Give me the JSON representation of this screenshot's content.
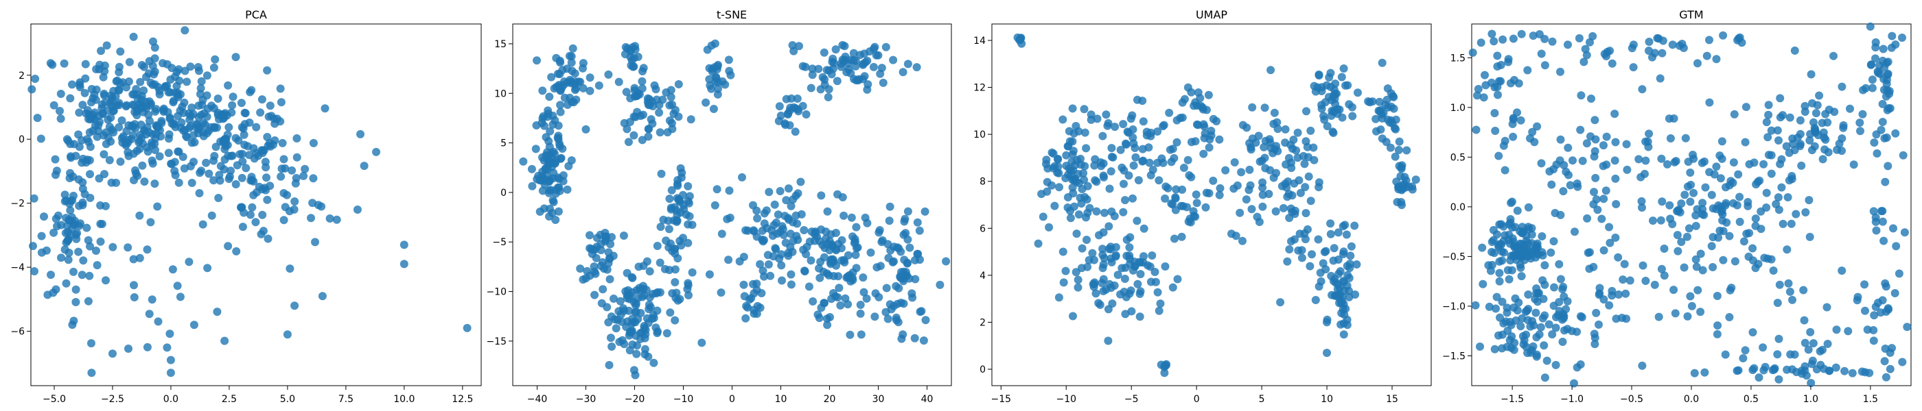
{
  "chart_data": [
    {
      "type": "scatter",
      "title": "PCA",
      "xlabel": "",
      "ylabel": "",
      "xlim": [
        -6.0,
        13.3
      ],
      "ylim": [
        -7.7,
        3.6
      ],
      "xticks": [
        -5.0,
        -2.5,
        0.0,
        2.5,
        5.0,
        7.5,
        10.0,
        12.5
      ],
      "xtick_labels": [
        "−5.0",
        "−2.5",
        "0.0",
        "2.5",
        "5.0",
        "7.5",
        "10.0",
        "12.5"
      ],
      "yticks": [
        -6,
        -4,
        -2,
        0,
        2
      ],
      "ytick_labels": [
        "−6",
        "−4",
        "−2",
        "0",
        "2"
      ],
      "grid": false,
      "color": "#1f77b4",
      "clusters": [
        {
          "cx": -2.0,
          "cy": 1.0,
          "sx": 1.6,
          "sy": 0.9,
          "n": 220
        },
        {
          "cx": 1.5,
          "cy": 0.3,
          "sx": 1.6,
          "sy": 1.0,
          "n": 200
        },
        {
          "cx": -4.2,
          "cy": -2.3,
          "sx": 0.7,
          "sy": 1.2,
          "n": 90
        },
        {
          "cx": 4.2,
          "cy": -1.6,
          "sx": 1.6,
          "sy": 1.0,
          "n": 70
        },
        {
          "cx": -1.5,
          "cy": -4.5,
          "sx": 1.8,
          "sy": 1.2,
          "n": 30
        }
      ],
      "outliers": [
        [
          12.7,
          -5.9
        ],
        [
          10.0,
          -3.9
        ],
        [
          10.0,
          -3.3
        ],
        [
          8.8,
          -0.4
        ],
        [
          5.0,
          -6.1
        ],
        [
          0.0,
          -7.3
        ],
        [
          0.0,
          -6.9
        ],
        [
          2.3,
          -6.3
        ],
        [
          1.0,
          -5.8
        ],
        [
          -3.4,
          -7.3
        ],
        [
          -2.5,
          -6.7
        ],
        [
          0.6,
          3.4
        ],
        [
          -1.6,
          3.2
        ],
        [
          8.0,
          -2.2
        ],
        [
          6.5,
          -4.9
        ],
        [
          5.3,
          -5.2
        ],
        [
          -1.0,
          -6.5
        ]
      ]
    },
    {
      "type": "scatter",
      "title": "t-SNE",
      "xlabel": "",
      "ylabel": "",
      "xlim": [
        -45,
        45
      ],
      "ylim": [
        -19.5,
        17
      ],
      "xticks": [
        -40,
        -30,
        -20,
        -10,
        0,
        10,
        20,
        30,
        40
      ],
      "xtick_labels": [
        "−40",
        "−30",
        "−20",
        "−10",
        "0",
        "10",
        "20",
        "30",
        "40"
      ],
      "yticks": [
        -15,
        -10,
        -5,
        0,
        5,
        10,
        15
      ],
      "ytick_labels": [
        "−15",
        "−10",
        "−5",
        "0",
        "5",
        "10",
        "15"
      ],
      "grid": false,
      "color": "#1f77b4",
      "clusters": [
        {
          "cx": -37,
          "cy": 3,
          "sx": 2.2,
          "sy": 2.5,
          "n": 90
        },
        {
          "cx": -33,
          "cy": 11.5,
          "sx": 2.5,
          "sy": 1.3,
          "n": 50
        },
        {
          "cx": -17,
          "cy": 8.5,
          "sx": 4.0,
          "sy": 2.0,
          "n": 60
        },
        {
          "cx": -20,
          "cy": 13.5,
          "sx": 1.0,
          "sy": 1.2,
          "n": 15
        },
        {
          "cx": -3,
          "cy": 12,
          "sx": 1.5,
          "sy": 1.8,
          "n": 25
        },
        {
          "cx": 24,
          "cy": 12.5,
          "sx": 5.0,
          "sy": 1.5,
          "n": 70
        },
        {
          "cx": 12,
          "cy": 8,
          "sx": 2.0,
          "sy": 1.2,
          "n": 20
        },
        {
          "cx": -27,
          "cy": -6.5,
          "sx": 2.0,
          "sy": 1.5,
          "n": 40
        },
        {
          "cx": -19,
          "cy": -12,
          "sx": 3.5,
          "sy": 2.5,
          "n": 110
        },
        {
          "cx": -11,
          "cy": -4,
          "sx": 1.5,
          "sy": 3.5,
          "n": 60
        },
        {
          "cx": 10,
          "cy": -4.5,
          "sx": 6.0,
          "sy": 2.5,
          "n": 110
        },
        {
          "cx": 22,
          "cy": -8,
          "sx": 4.0,
          "sy": 3.0,
          "n": 80
        },
        {
          "cx": 35,
          "cy": -8,
          "sx": 3.0,
          "sy": 3.0,
          "n": 70
        },
        {
          "cx": 5,
          "cy": -11,
          "sx": 2.0,
          "sy": 1.0,
          "n": 15
        }
      ],
      "outliers": []
    },
    {
      "type": "scatter",
      "title": "UMAP",
      "xlabel": "",
      "ylabel": "",
      "xlim": [
        -15.7,
        18.0
      ],
      "ylim": [
        -0.7,
        14.7
      ],
      "xticks": [
        -15,
        -10,
        -5,
        0,
        5,
        10,
        15
      ],
      "xtick_labels": [
        "−15",
        "−10",
        "−5",
        "0",
        "5",
        "10",
        "15"
      ],
      "yticks": [
        0,
        2,
        4,
        6,
        8,
        10,
        12,
        14
      ],
      "ytick_labels": [
        "0",
        "2",
        "4",
        "6",
        "8",
        "10",
        "12",
        "14"
      ],
      "grid": false,
      "color": "#1f77b4",
      "clusters": [
        {
          "cx": -13.5,
          "cy": 14.0,
          "sx": 0.15,
          "sy": 0.12,
          "n": 6
        },
        {
          "cx": -2.5,
          "cy": 0.1,
          "sx": 0.15,
          "sy": 0.12,
          "n": 6
        },
        {
          "cx": -9.0,
          "cy": 8.0,
          "sx": 1.3,
          "sy": 1.5,
          "n": 90
        },
        {
          "cx": -6.0,
          "cy": 4.0,
          "sx": 1.8,
          "sy": 1.0,
          "n": 90
        },
        {
          "cx": -3.5,
          "cy": 9.5,
          "sx": 1.8,
          "sy": 1.2,
          "n": 60
        },
        {
          "cx": -10.5,
          "cy": 9.0,
          "sx": 0.8,
          "sy": 0.3,
          "n": 12
        },
        {
          "cx": 0.2,
          "cy": 11.0,
          "sx": 0.9,
          "sy": 0.9,
          "n": 30
        },
        {
          "cx": 5.5,
          "cy": 8.5,
          "sx": 2.0,
          "sy": 1.3,
          "n": 90
        },
        {
          "cx": 10.5,
          "cy": 11.5,
          "sx": 1.0,
          "sy": 0.7,
          "n": 45
        },
        {
          "cx": 14.5,
          "cy": 11.0,
          "sx": 0.6,
          "sy": 0.9,
          "n": 35
        },
        {
          "cx": 11.0,
          "cy": 3.5,
          "sx": 0.8,
          "sy": 1.2,
          "n": 60
        },
        {
          "cx": 8.5,
          "cy": 6.0,
          "sx": 1.0,
          "sy": 1.2,
          "n": 30
        },
        {
          "cx": 15.8,
          "cy": 7.8,
          "sx": 0.4,
          "sy": 0.6,
          "n": 25
        },
        {
          "cx": -1.0,
          "cy": 7.0,
          "sx": 1.0,
          "sy": 0.7,
          "n": 25
        }
      ],
      "outliers": []
    },
    {
      "type": "scatter",
      "title": "GTM",
      "xlabel": "",
      "ylabel": "",
      "xlim": [
        -1.84,
        1.84
      ],
      "ylim": [
        -1.8,
        1.84
      ],
      "xticks": [
        -1.5,
        -1.0,
        -0.5,
        0.0,
        0.5,
        1.0,
        1.5
      ],
      "xtick_labels": [
        "−1.5",
        "−1.0",
        "−0.5",
        "0.0",
        "0.5",
        "1.0",
        "1.5"
      ],
      "yticks": [
        -1.5,
        -1.0,
        -0.5,
        0.0,
        0.5,
        1.0,
        1.5
      ],
      "ytick_labels": [
        "−1.5",
        "−1.0",
        "−0.5",
        "0.0",
        "0.5",
        "1.0",
        "1.5"
      ],
      "grid": false,
      "color": "#1f77b4",
      "clusters": [
        {
          "cx": -1.45,
          "cy": -0.35,
          "sx": 0.12,
          "sy": 0.15,
          "n": 90
        },
        {
          "cx": -1.35,
          "cy": -1.2,
          "sx": 0.2,
          "sy": 0.25,
          "n": 80
        },
        {
          "cx": 0.3,
          "cy": 0.0,
          "sx": 0.3,
          "sy": 0.35,
          "n": 110
        },
        {
          "cx": 1.05,
          "cy": 0.75,
          "sx": 0.2,
          "sy": 0.2,
          "n": 60
        },
        {
          "cx": 1.6,
          "cy": 1.3,
          "sx": 0.07,
          "sy": 0.35,
          "n": 40
        },
        {
          "cx": -0.7,
          "cy": 0.5,
          "sx": 0.35,
          "sy": 0.25,
          "n": 60
        },
        {
          "cx": -0.5,
          "cy": 1.6,
          "sx": 0.6,
          "sy": 0.1,
          "n": 40
        },
        {
          "cx": 1.0,
          "cy": -1.65,
          "sx": 0.35,
          "sy": 0.04,
          "n": 35
        },
        {
          "cx": 1.0,
          "cy": -1.2,
          "sx": 0.4,
          "sy": 0.25,
          "n": 40
        },
        {
          "cx": -0.9,
          "cy": -0.8,
          "sx": 0.35,
          "sy": 0.35,
          "n": 60
        },
        {
          "cx": 0.0,
          "cy": 0.0,
          "sx": 1.0,
          "sy": 1.0,
          "n": 80
        },
        {
          "cx": -1.6,
          "cy": 1.2,
          "sx": 0.15,
          "sy": 0.4,
          "n": 40
        },
        {
          "cx": 1.6,
          "cy": -0.3,
          "sx": 0.1,
          "sy": 0.6,
          "n": 30
        }
      ],
      "outliers": []
    }
  ]
}
